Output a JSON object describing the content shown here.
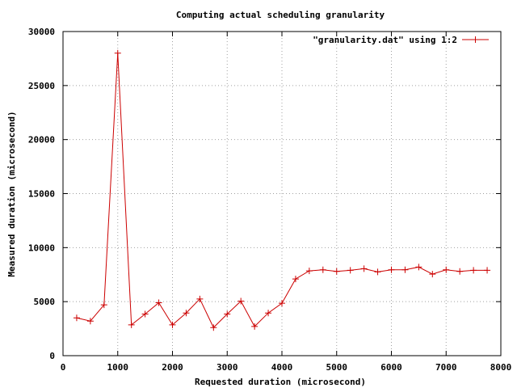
{
  "chart_data": {
    "type": "line",
    "title": "Computing actual scheduling granularity",
    "xlabel": "Requested duration (microsecond)",
    "ylabel": "Measured duration (microsecond)",
    "xlim": [
      0,
      8000
    ],
    "ylim": [
      0,
      30000
    ],
    "xticks": [
      0,
      1000,
      2000,
      3000,
      4000,
      5000,
      6000,
      7000,
      8000
    ],
    "yticks": [
      0,
      5000,
      10000,
      15000,
      20000,
      25000,
      30000
    ],
    "grid": true,
    "legend_position": "top-right",
    "series": [
      {
        "name": "\"granularity.dat\" using 1:2",
        "color": "#cc0000",
        "marker": "plus",
        "x": [
          250,
          500,
          750,
          1000,
          1250,
          1500,
          1750,
          2000,
          2250,
          2500,
          2750,
          3000,
          3250,
          3500,
          3750,
          4000,
          4250,
          4500,
          4750,
          5000,
          5250,
          5500,
          5750,
          6000,
          6250,
          6500,
          6750,
          7000,
          7250,
          7500,
          7750
        ],
        "y": [
          3500,
          3200,
          4700,
          28000,
          2850,
          3850,
          4900,
          2850,
          3950,
          5250,
          2600,
          3850,
          5050,
          2700,
          3950,
          4850,
          7100,
          7850,
          7950,
          7800,
          7900,
          8050,
          7750,
          7950,
          7950,
          8200,
          7550,
          7950,
          7800,
          7900,
          7900
        ]
      }
    ]
  }
}
